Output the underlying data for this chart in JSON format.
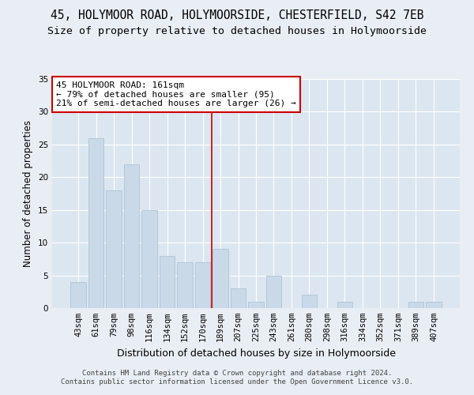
{
  "title": "45, HOLYMOOR ROAD, HOLYMOORSIDE, CHESTERFIELD, S42 7EB",
  "subtitle": "Size of property relative to detached houses in Holymoorside",
  "xlabel": "Distribution of detached houses by size in Holymoorside",
  "ylabel": "Number of detached properties",
  "categories": [
    "43sqm",
    "61sqm",
    "79sqm",
    "98sqm",
    "116sqm",
    "134sqm",
    "152sqm",
    "170sqm",
    "189sqm",
    "207sqm",
    "225sqm",
    "243sqm",
    "261sqm",
    "280sqm",
    "298sqm",
    "316sqm",
    "334sqm",
    "352sqm",
    "371sqm",
    "389sqm",
    "407sqm"
  ],
  "values": [
    4,
    26,
    18,
    22,
    15,
    8,
    7,
    7,
    9,
    3,
    1,
    5,
    0,
    2,
    0,
    1,
    0,
    0,
    0,
    1,
    1
  ],
  "bar_color": "#c9d9e8",
  "bar_edge_color": "#a8bece",
  "vline_x": 7.5,
  "vline_color": "#cc0000",
  "annotation_text": "45 HOLYMOOR ROAD: 161sqm\n← 79% of detached houses are smaller (95)\n21% of semi-detached houses are larger (26) →",
  "annotation_box_color": "#ffffff",
  "annotation_box_edge": "#cc0000",
  "ylim": [
    0,
    35
  ],
  "yticks": [
    0,
    5,
    10,
    15,
    20,
    25,
    30,
    35
  ],
  "background_color": "#e8eef4",
  "plot_background": "#dce6f0",
  "grid_color": "#ffffff",
  "footer": "Contains HM Land Registry data © Crown copyright and database right 2024.\nContains public sector information licensed under the Open Government Licence v3.0.",
  "title_fontsize": 10.5,
  "subtitle_fontsize": 9.5,
  "xlabel_fontsize": 9,
  "ylabel_fontsize": 8.5,
  "tick_fontsize": 7.5,
  "annotation_fontsize": 8,
  "footer_fontsize": 6.5
}
